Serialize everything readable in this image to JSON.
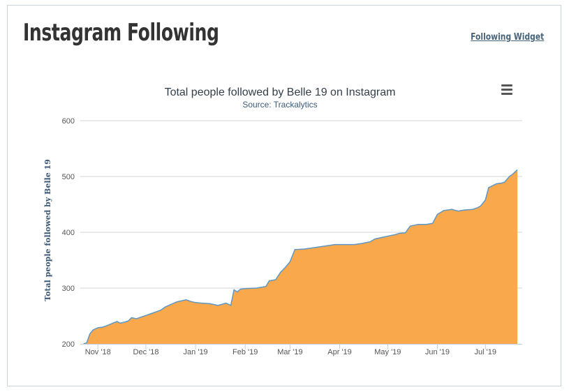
{
  "page": {
    "title": "Instagram Following",
    "widget_link": "Following Widget"
  },
  "chart_data": {
    "type": "area",
    "title": "Total people followed by Belle 19 on Instagram",
    "subtitle": "Source: Trackalytics",
    "xlabel": "",
    "ylabel": "Total people followed by Belle 19",
    "ylim": [
      200,
      600
    ],
    "yticks": [
      200,
      300,
      400,
      500,
      600
    ],
    "x_ticks": [
      "Nov '18",
      "Dec '18",
      "Jan '19",
      "Feb '19",
      "Mar '19",
      "Apr '19",
      "May '19",
      "Jun '19",
      "Jul '19"
    ],
    "grid": true,
    "legend": "none",
    "colors": {
      "fill": "#f9a84c",
      "line": "#5d97c5",
      "grid": "#d6d6d6",
      "axis": "#c0d0e0"
    },
    "series": [
      {
        "dates": [
          "2018-10-23",
          "2018-10-25",
          "2018-10-27",
          "2018-10-29",
          "2018-11-01",
          "2018-11-04",
          "2018-11-07",
          "2018-11-11",
          "2018-11-13",
          "2018-11-15",
          "2018-11-20",
          "2018-11-22",
          "2018-11-25",
          "2018-11-28",
          "2018-12-02",
          "2018-12-05",
          "2018-12-10",
          "2018-12-13",
          "2018-12-20",
          "2018-12-26",
          "2018-12-29",
          "2019-01-01",
          "2019-01-05",
          "2019-01-10",
          "2019-01-15",
          "2019-01-20",
          "2019-01-23",
          "2019-01-25",
          "2019-01-27",
          "2019-01-29",
          "2019-02-01",
          "2019-02-08",
          "2019-02-10",
          "2019-02-14",
          "2019-02-16",
          "2019-02-20",
          "2019-02-23",
          "2019-02-26",
          "2019-03-01",
          "2019-03-04",
          "2019-03-10",
          "2019-03-15",
          "2019-03-22",
          "2019-03-29",
          "2019-04-10",
          "2019-04-15",
          "2019-04-20",
          "2019-04-23",
          "2019-05-01",
          "2019-05-06",
          "2019-05-08",
          "2019-05-12",
          "2019-05-15",
          "2019-05-20",
          "2019-05-25",
          "2019-05-29",
          "2019-06-01",
          "2019-06-05",
          "2019-06-10",
          "2019-06-14",
          "2019-06-18",
          "2019-06-23",
          "2019-06-26",
          "2019-06-28",
          "2019-07-01",
          "2019-07-03",
          "2019-07-08",
          "2019-07-11",
          "2019-07-13",
          "2019-07-16",
          "2019-07-18",
          "2019-07-21"
        ],
        "values": [
          200,
          202,
          218,
          225,
          229,
          230,
          233,
          238,
          240,
          237,
          241,
          247,
          245,
          248,
          252,
          255,
          260,
          266,
          275,
          279,
          276,
          274,
          273,
          272,
          269,
          273,
          269,
          297,
          293,
          298,
          299,
          300,
          301,
          303,
          313,
          315,
          328,
          337,
          347,
          369,
          370,
          372,
          375,
          378,
          378,
          380,
          383,
          388,
          393,
          396,
          398,
          399,
          411,
          414,
          414,
          416,
          432,
          439,
          441,
          438,
          440,
          441,
          444,
          447,
          458,
          480,
          487,
          488,
          490,
          500,
          504,
          512
        ]
      }
    ]
  }
}
